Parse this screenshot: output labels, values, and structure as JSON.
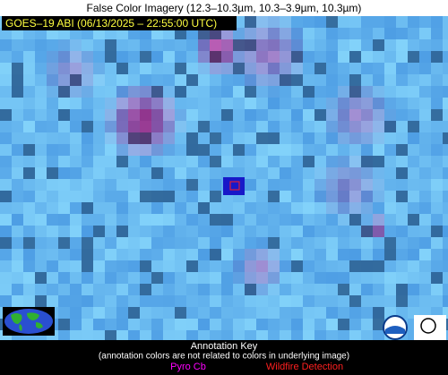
{
  "header": {
    "title": "False Color Imagery (12.3–10.3µm, 10.3–3.9µm, 10.3µm)",
    "subtitle": "GOES–19 ABI (06/13/2025 – 22:55:00 UTC)"
  },
  "annotation_key": {
    "title": "Annotation Key",
    "note": "(annotation colors are not related to colors in underlying image)",
    "pyro_cb": "Pyro Cb",
    "wildfire": "Wildfire Detection"
  }
}
